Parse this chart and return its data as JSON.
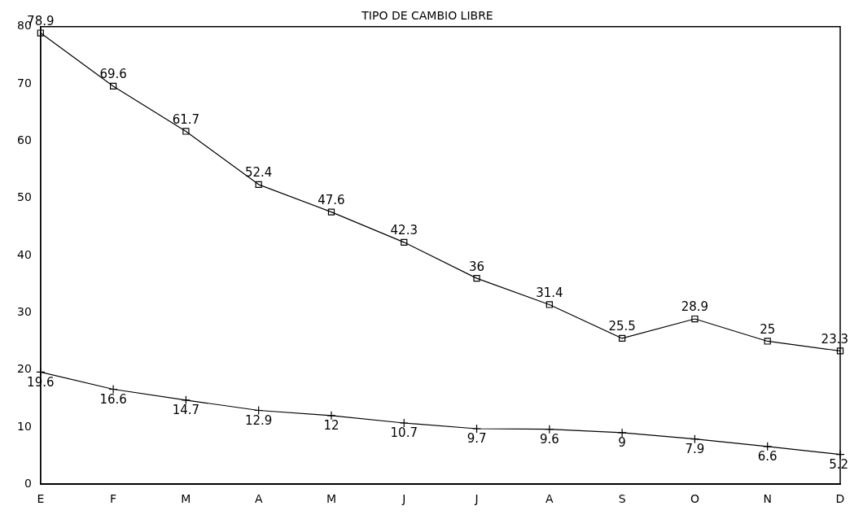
{
  "chart_data": {
    "type": "line",
    "title": "TIPO DE CAMBIO LIBRE",
    "categories": [
      "E",
      "F",
      "M",
      "A",
      "M",
      "J",
      "J",
      "A",
      "S",
      "O",
      "N",
      "D"
    ],
    "series": [
      {
        "color": "#000000",
        "marker": "square",
        "values": [
          78.9,
          69.6,
          61.7,
          52.4,
          47.6,
          42.3,
          36,
          31.4,
          25.5,
          28.9,
          25,
          23.3
        ]
      },
      {
        "color": "#000000",
        "marker": "cross",
        "values": [
          19.6,
          16.6,
          14.7,
          12.9,
          12,
          10.7,
          9.7,
          9.6,
          9,
          7.9,
          6.6,
          5.2
        ]
      }
    ],
    "ylim": [
      0,
      80
    ],
    "yticks": [
      0,
      10,
      20,
      30,
      40,
      50,
      60,
      70,
      80
    ],
    "grid": false,
    "legend": false,
    "data_labels": true
  }
}
